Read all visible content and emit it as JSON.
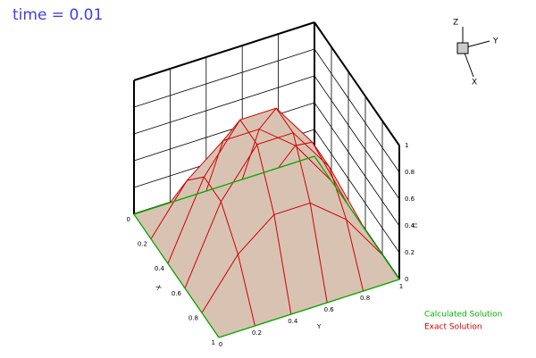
{
  "chart_data": {
    "type": "surface3d",
    "title": "time = 0.01",
    "x_label": "X",
    "y_label": "Y",
    "z_label": "U",
    "x": [
      0,
      0.2,
      0.4,
      0.6,
      0.8,
      1
    ],
    "y": [
      0,
      0.2,
      0.4,
      0.6,
      0.8,
      1
    ],
    "xlim": [
      0,
      1
    ],
    "ylim": [
      0,
      1
    ],
    "zlim": [
      0,
      1
    ],
    "xticks": [
      0,
      0.2,
      0.4,
      0.6,
      0.8,
      1
    ],
    "yticks": [
      0,
      0.2,
      0.4,
      0.6,
      0.8,
      1
    ],
    "zticks": [
      0,
      0.2,
      0.4,
      0.6,
      0.8,
      1
    ],
    "series": [
      {
        "name": "Calculated Solution",
        "color": "#00b000",
        "fill": "#d8c3b3",
        "values": [
          [
            0,
            0,
            0,
            0,
            0,
            0
          ],
          [
            0,
            0.35,
            0.56,
            0.56,
            0.35,
            0
          ],
          [
            0,
            0.56,
            0.9,
            0.9,
            0.56,
            0
          ],
          [
            0,
            0.56,
            0.9,
            0.9,
            0.56,
            0
          ],
          [
            0,
            0.35,
            0.56,
            0.56,
            0.35,
            0
          ],
          [
            0,
            0,
            0,
            0,
            0,
            0
          ]
        ]
      },
      {
        "name": "Exact Solution",
        "color": "#d00000",
        "values": [
          [
            0,
            0,
            0,
            0,
            0,
            0
          ],
          [
            0,
            0.35,
            0.56,
            0.56,
            0.35,
            0
          ],
          [
            0,
            0.56,
            0.9,
            0.9,
            0.56,
            0
          ],
          [
            0,
            0.56,
            0.9,
            0.9,
            0.56,
            0
          ],
          [
            0,
            0.35,
            0.56,
            0.56,
            0.35,
            0
          ],
          [
            0,
            0,
            0,
            0,
            0,
            0
          ]
        ]
      }
    ],
    "orientation": {
      "z": "Z",
      "y": "Y",
      "x": "X"
    }
  }
}
